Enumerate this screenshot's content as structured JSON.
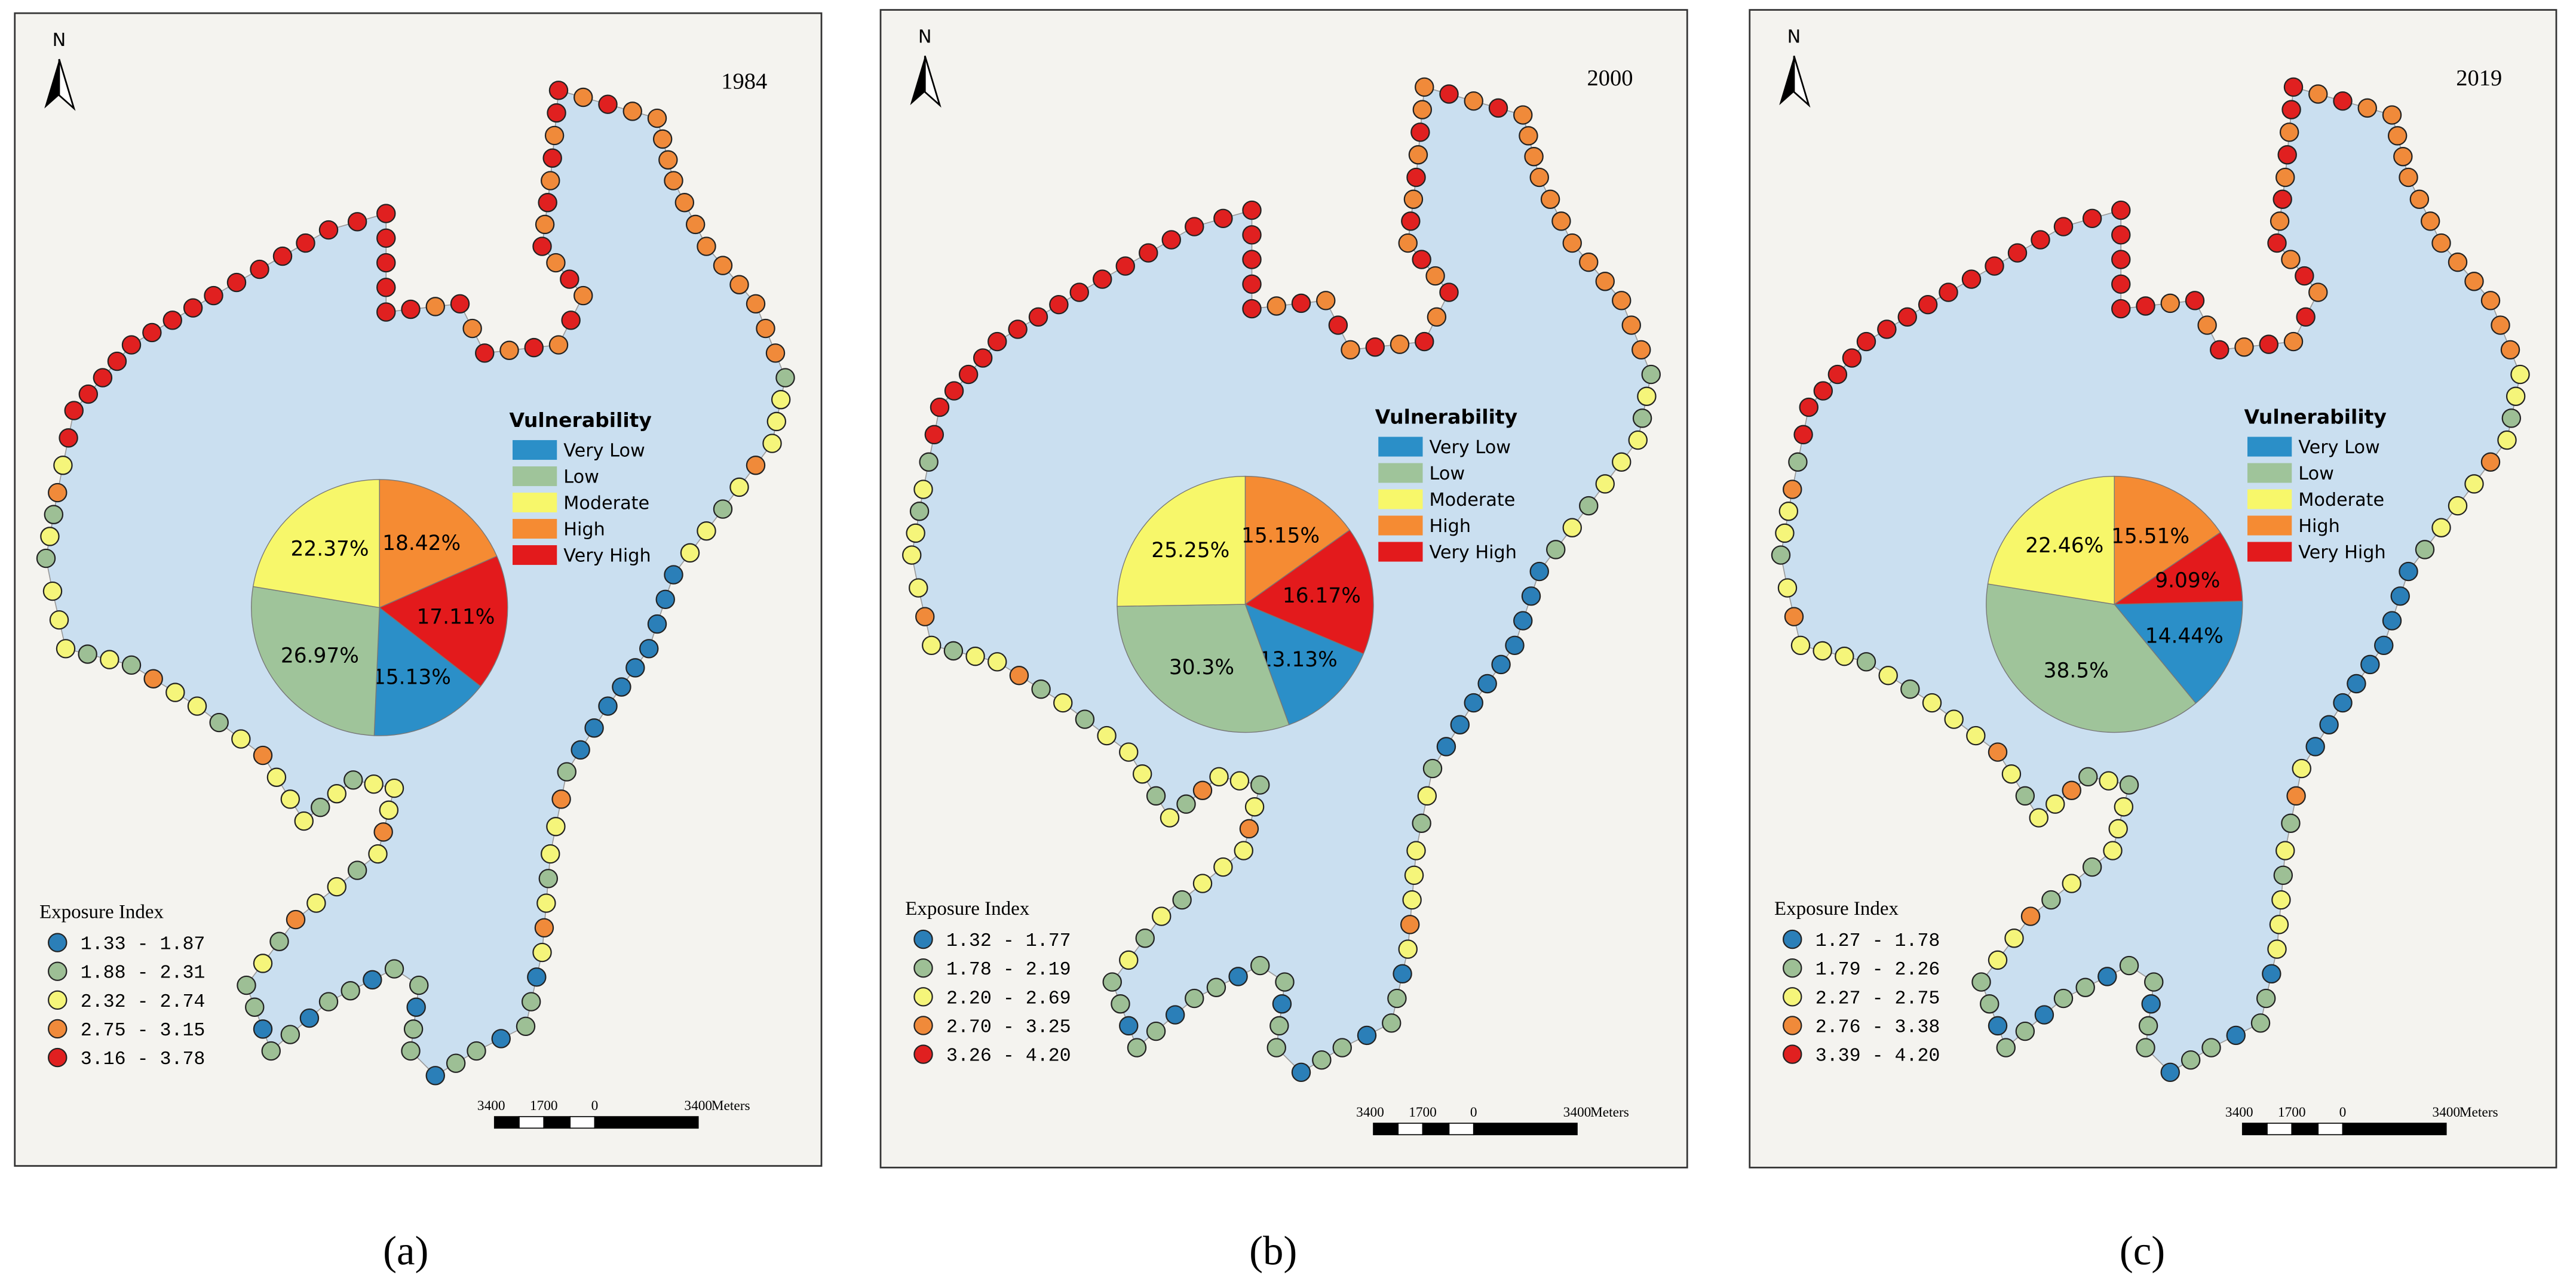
{
  "chart_data": [
    {
      "type": "pie",
      "legend_title": "Vulnerability",
      "categories": [
        "Very Low",
        "Low",
        "Moderate",
        "High",
        "Very High"
      ],
      "values": [
        15.13,
        26.97,
        22.37,
        18.42,
        17.11
      ],
      "value_labels": [
        "15.13%",
        "26.97%",
        "22.37%",
        "18.42%",
        "17.11%"
      ],
      "colors": [
        "#2b8fc8",
        "#9fc49a",
        "#f7f76a",
        "#f58b33",
        "#e31a1c"
      ]
    },
    {
      "type": "pie",
      "legend_title": "Vulnerability",
      "categories": [
        "Very Low",
        "Low",
        "Moderate",
        "High",
        "Very High"
      ],
      "values": [
        13.13,
        30.3,
        25.25,
        15.15,
        16.17
      ],
      "value_labels": [
        "13.13%",
        "30.3%",
        "25.25%",
        "15.15%",
        "16.17%"
      ],
      "colors": [
        "#2b8fc8",
        "#9fc49a",
        "#f7f76a",
        "#f58b33",
        "#e31a1c"
      ]
    },
    {
      "type": "pie",
      "legend_title": "Vulnerability",
      "categories": [
        "Very Low",
        "Low",
        "Moderate",
        "High",
        "Very High"
      ],
      "values": [
        14.44,
        38.5,
        22.46,
        15.51,
        9.09
      ],
      "value_labels": [
        "14.44%",
        "38.5%",
        "22.46%",
        "15.51%",
        "9.09%"
      ],
      "colors": [
        "#2b8fc8",
        "#9fc49a",
        "#f7f76a",
        "#f58b33",
        "#e31a1c"
      ]
    }
  ],
  "panels": [
    {
      "caption": "(a)",
      "year": "1984",
      "north": "N",
      "exposure_legend": {
        "title": "Exposure Index",
        "classes": [
          "1.33 - 1.87",
          "1.88 - 2.31",
          "2.32 - 2.74",
          "2.75 - 3.15",
          "3.16 - 3.78"
        ],
        "colors": [
          "#2b7fb8",
          "#9dbf95",
          "#f5f57a",
          "#f08a3a",
          "#e02020"
        ]
      },
      "scale_bar": {
        "labels": [
          "3400",
          "1700",
          "0",
          "3400"
        ],
        "unit": "Meters"
      }
    },
    {
      "caption": "(b)",
      "year": "2000",
      "north": "N",
      "exposure_legend": {
        "title": "Exposure Index",
        "classes": [
          "1.32 - 1.77",
          "1.78 - 2.19",
          "2.20 - 2.69",
          "2.70 - 3.25",
          "3.26 - 4.20"
        ],
        "colors": [
          "#2b7fb8",
          "#9dbf95",
          "#f5f57a",
          "#f08a3a",
          "#e02020"
        ]
      },
      "scale_bar": {
        "labels": [
          "3400",
          "1700",
          "0",
          "3400"
        ],
        "unit": "Meters"
      }
    },
    {
      "caption": "(c)",
      "year": "2019",
      "north": "N",
      "exposure_legend": {
        "title": "Exposure Index",
        "classes": [
          "1.27 - 1.78",
          "1.79 - 2.26",
          "2.27 - 2.75",
          "2.76 - 3.38",
          "3.39 - 4.20"
        ],
        "colors": [
          "#2b7fb8",
          "#9dbf95",
          "#f5f57a",
          "#f08a3a",
          "#e02020"
        ]
      },
      "scale_bar": {
        "labels": [
          "3400",
          "1700",
          "0",
          "3400"
        ],
        "unit": "Meters"
      }
    }
  ]
}
